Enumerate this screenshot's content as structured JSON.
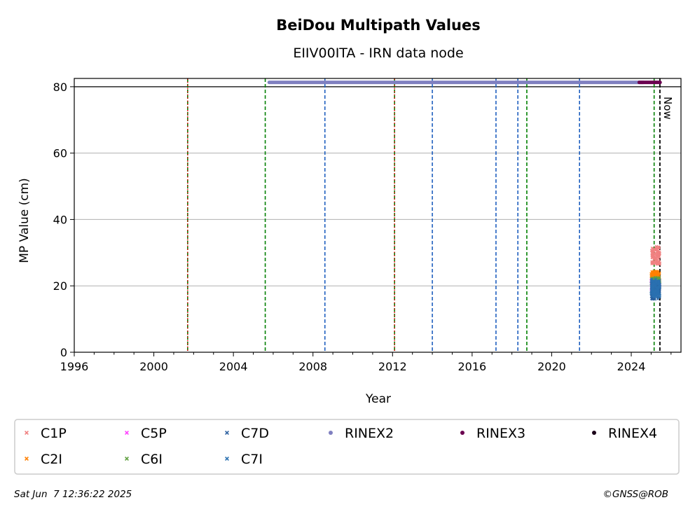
{
  "chart_data": {
    "type": "scatter",
    "title": "BeiDou Multipath Values",
    "subtitle": "EIIV00ITA - IRN data node",
    "xlabel": "Year",
    "ylabel": "MP Value (cm)",
    "xlim": [
      1996,
      2026.5
    ],
    "ylim": [
      0,
      82.5
    ],
    "x_ticks": [
      "1996",
      "2000",
      "2004",
      "2008",
      "2012",
      "2016",
      "2020",
      "2024"
    ],
    "y_ticks": [
      "0",
      "20",
      "40",
      "60",
      "80"
    ],
    "grid": "horizontal",
    "now_label": "Now",
    "now_year": 2025.44,
    "reference_line_y": 80,
    "event_lines": [
      {
        "year": 2001.7,
        "color": "#008000",
        "kind": "green"
      },
      {
        "year": 2001.7,
        "color": "#dd0000",
        "kind": "red"
      },
      {
        "year": 2005.6,
        "color": "#008000",
        "kind": "green"
      },
      {
        "year": 2008.6,
        "color": "#1f5fbf",
        "kind": "blue"
      },
      {
        "year": 2012.1,
        "color": "#008000",
        "kind": "green"
      },
      {
        "year": 2012.1,
        "color": "#dd0000",
        "kind": "red"
      },
      {
        "year": 2014.0,
        "color": "#1f5fbf",
        "kind": "blue"
      },
      {
        "year": 2017.2,
        "color": "#1f5fbf",
        "kind": "blue"
      },
      {
        "year": 2018.3,
        "color": "#1f5fbf",
        "kind": "blue"
      },
      {
        "year": 2018.75,
        "color": "#008000",
        "kind": "green"
      },
      {
        "year": 2021.4,
        "color": "#1f5fbf",
        "kind": "blue"
      },
      {
        "year": 2025.15,
        "color": "#008000",
        "kind": "green"
      }
    ],
    "rinex_bars": [
      {
        "name": "RINEX2",
        "color": "#8080c0",
        "start": 2005.8,
        "end": 2024.6,
        "y": 81.3
      },
      {
        "name": "RINEX3",
        "color": "#6b0050",
        "start": 2024.4,
        "end": 2025.45,
        "y": 81.3
      }
    ],
    "series": [
      {
        "name": "C1P",
        "color": "#f08080",
        "marker": "x",
        "x_start": 2025.0,
        "x_end": 2025.44,
        "y_min": 26.5,
        "y_max": 32
      },
      {
        "name": "C2I",
        "color": "#ff8000",
        "marker": "x",
        "x_start": 2025.0,
        "x_end": 2025.44,
        "y_min": 21,
        "y_max": 24.5
      },
      {
        "name": "C5P",
        "color": "#ff40ff",
        "marker": "x",
        "x_start": 2025.0,
        "x_end": 2025.44,
        "y_min": 19,
        "y_max": 22
      },
      {
        "name": "C6I",
        "color": "#60a040",
        "marker": "x",
        "x_start": 2025.0,
        "x_end": 2025.44,
        "y_min": 19,
        "y_max": 22.5
      },
      {
        "name": "C7D",
        "color": "#2a5f9f",
        "marker": "x",
        "x_start": 2025.0,
        "x_end": 2025.44,
        "y_min": 16,
        "y_max": 21
      },
      {
        "name": "C7I",
        "color": "#2a70b0",
        "marker": "x",
        "x_start": 2025.0,
        "x_end": 2025.44,
        "y_min": 16.5,
        "y_max": 22
      }
    ],
    "legend": {
      "placement": "bottom",
      "entries": [
        {
          "label": "C1P",
          "color": "#f08080",
          "marker": "x"
        },
        {
          "label": "C5P",
          "color": "#ff40ff",
          "marker": "x"
        },
        {
          "label": "C7D",
          "color": "#2a5f9f",
          "marker": "x"
        },
        {
          "label": "RINEX2",
          "color": "#8080c0",
          "marker": "dot"
        },
        {
          "label": "RINEX3",
          "color": "#6b0050",
          "marker": "dot"
        },
        {
          "label": "RINEX4",
          "color": "#1a0018",
          "marker": "dot"
        },
        {
          "label": "C2I",
          "color": "#ff8000",
          "marker": "x"
        },
        {
          "label": "C6I",
          "color": "#60a040",
          "marker": "x"
        },
        {
          "label": "C7I",
          "color": "#2a70b0",
          "marker": "x"
        }
      ]
    },
    "timestamp": "Sat Jun  7 12:36:22 2025",
    "copyright": "©GNSS@ROB"
  }
}
